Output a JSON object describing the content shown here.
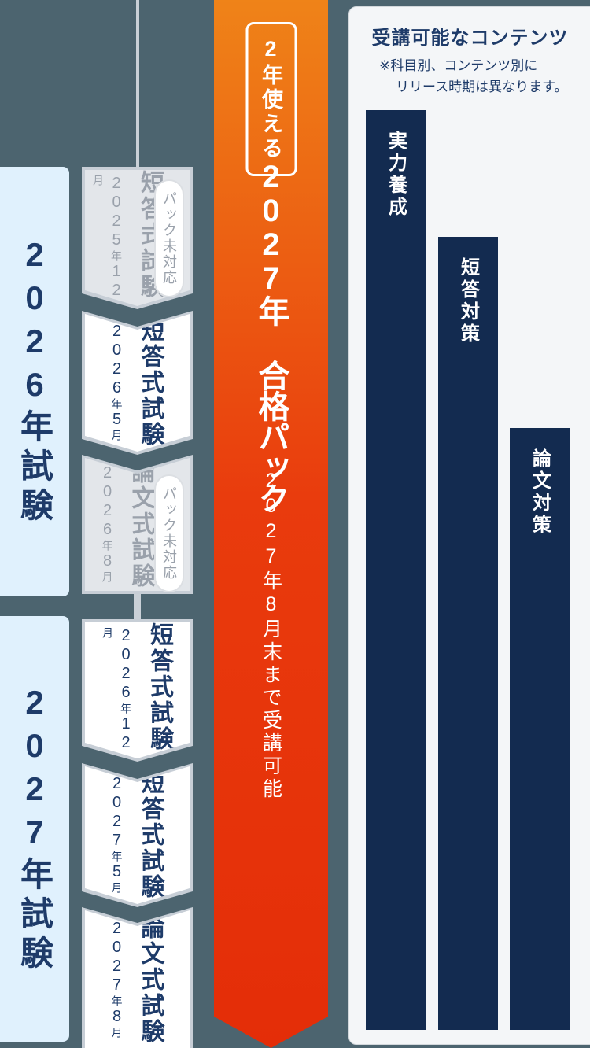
{
  "timeline": {
    "groups": [
      {
        "label": "2026年試験",
        "boxes": [
          {
            "title": "短答式試験",
            "date": "2025年12月",
            "badge": "パック未対応",
            "pack_supported": false
          },
          {
            "title": "短答式試験",
            "date": "2026年5月",
            "pack_supported": true
          },
          {
            "title": "論文式試験",
            "date": "2026年8月",
            "badge": "パック未対応",
            "pack_supported": false
          }
        ]
      },
      {
        "label": "2027年試験",
        "boxes": [
          {
            "title": "短答式試験",
            "date": "2026年12月",
            "pack_supported": true
          },
          {
            "title": "短答式試験",
            "date": "2027年5月",
            "pack_supported": true
          },
          {
            "title": "論文式試験",
            "date": "2027年8月",
            "pack_supported": true
          }
        ]
      }
    ]
  },
  "banner": {
    "badge": "2年使える",
    "title": "2027年 合格パック",
    "subtitle": "2027年8月末まで受講可能"
  },
  "contents_panel": {
    "heading": "受講可能なコンテンツ",
    "note_line1": "※科目別、コンテンツ別に",
    "note_line2": "リリース時期は異なります。",
    "bars": [
      {
        "label": "実力養成"
      },
      {
        "label": "短答対策"
      },
      {
        "label": "論文対策"
      }
    ]
  },
  "colors": {
    "slate_background": "#4c646f",
    "year_column_blue": "#e0f1fd",
    "navy_text": "#1e3b69",
    "box_border_gray": "#c7ced6",
    "unsupported_box_gray": "#e3e6ea",
    "unsupported_text_gray": "#9aa1ab",
    "panel_background": "#f4f6f8",
    "bar_navy": "#132b50",
    "banner_gradient_top": "#ef8318",
    "banner_gradient_bottom": "#e42d08"
  }
}
